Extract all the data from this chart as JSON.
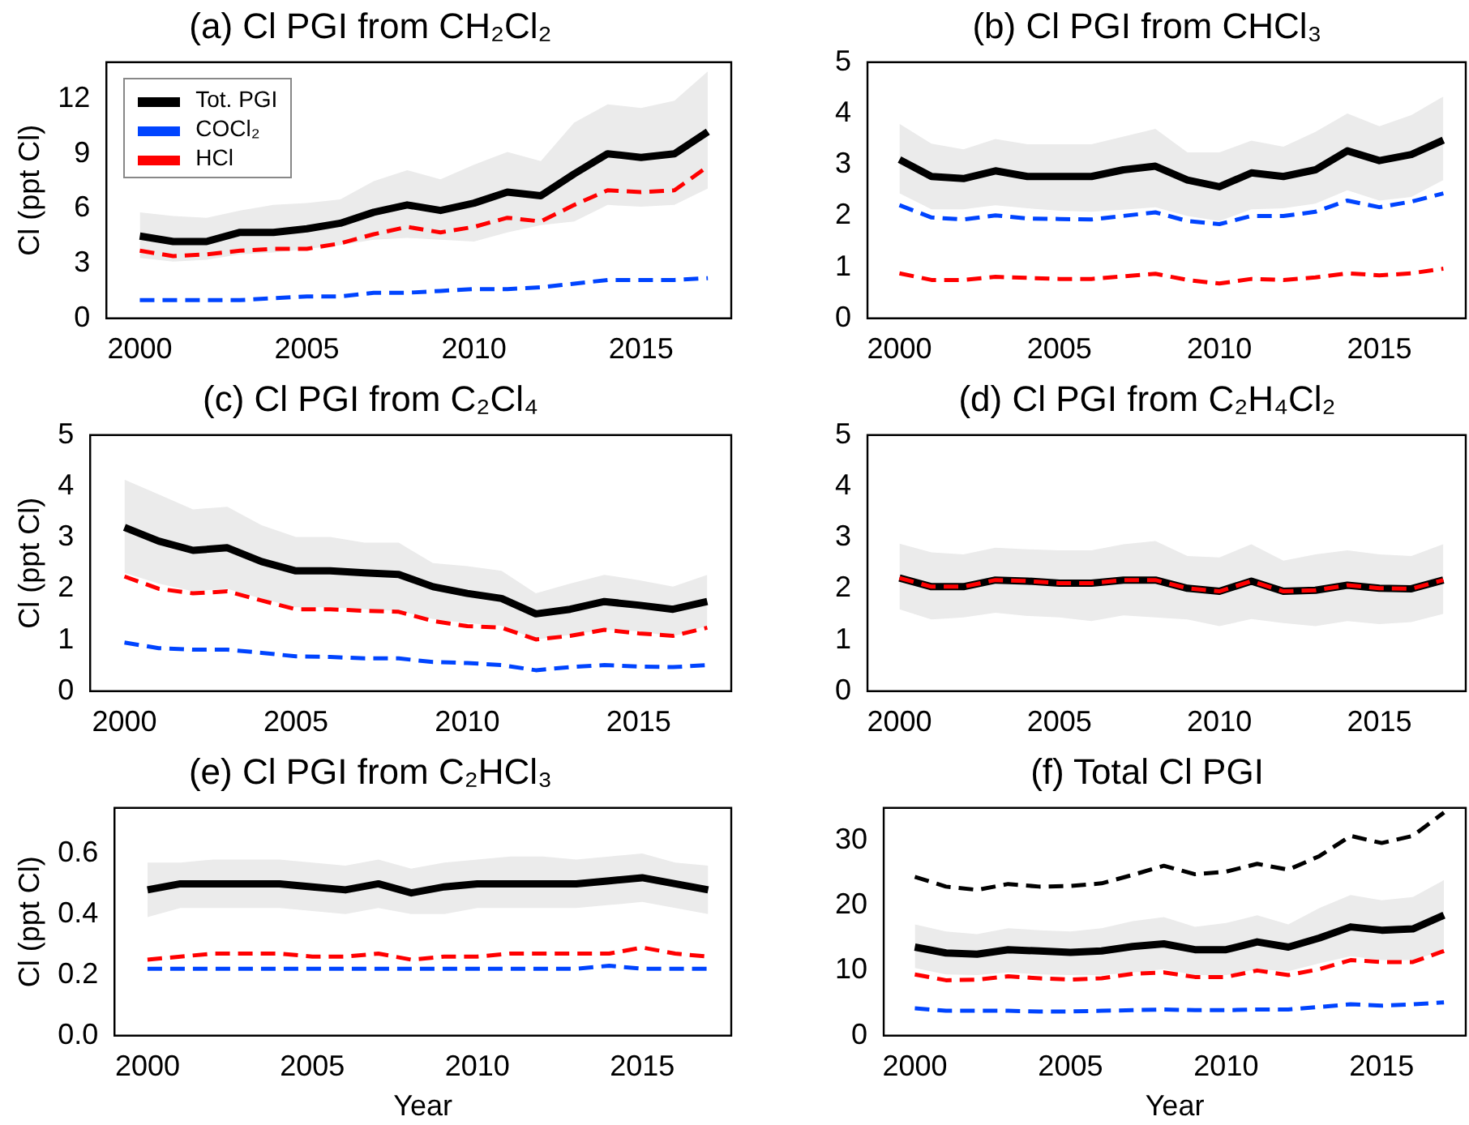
{
  "chart_data": [
    {
      "type": "line",
      "title": "(a) Cl PGI from CH₂Cl₂",
      "ylabel": "Cl (ppt Cl)",
      "legend": "top left",
      "x": [
        2000,
        2001,
        2002,
        2003,
        2004,
        2005,
        2006,
        2007,
        2008,
        2009,
        2010,
        2011,
        2012,
        2013,
        2014,
        2015,
        2016,
        2017
      ],
      "xlim": [
        1999,
        2017.7
      ],
      "xticks": [
        2000,
        2005,
        2010,
        2015
      ],
      "ylim": [
        0,
        14
      ],
      "yticks": [
        0,
        3,
        6,
        9,
        12
      ],
      "series": [
        {
          "name": "Tot. PGI",
          "color": "#000000",
          "line_style": "solid",
          "values": [
            4.5,
            4.2,
            4.2,
            4.7,
            4.7,
            4.9,
            5.2,
            5.8,
            6.2,
            5.9,
            6.3,
            6.9,
            6.7,
            7.9,
            9.0,
            8.8,
            9.0,
            10.2
          ],
          "lower": [
            3.3,
            3.1,
            3.2,
            3.5,
            3.6,
            3.8,
            4.0,
            4.3,
            4.4,
            4.3,
            4.2,
            4.7,
            5.1,
            5.3,
            6.2,
            6.1,
            6.2,
            7.1
          ],
          "upper": [
            5.8,
            5.6,
            5.5,
            5.9,
            6.2,
            6.3,
            6.5,
            7.5,
            8.1,
            7.6,
            8.4,
            9.1,
            8.6,
            10.7,
            11.7,
            11.5,
            11.9,
            13.5
          ]
        },
        {
          "name": "COCl₂",
          "color": "#0044ff",
          "line_style": "dashed",
          "values": [
            1.0,
            1.0,
            1.0,
            1.0,
            1.1,
            1.2,
            1.2,
            1.4,
            1.4,
            1.5,
            1.6,
            1.6,
            1.7,
            1.9,
            2.1,
            2.1,
            2.1,
            2.2
          ]
        },
        {
          "name": "HCl",
          "color": "#ff0000",
          "line_style": "dashed",
          "values": [
            3.7,
            3.4,
            3.5,
            3.7,
            3.8,
            3.8,
            4.1,
            4.6,
            5.0,
            4.7,
            5.0,
            5.5,
            5.3,
            6.2,
            7.0,
            6.9,
            7.0,
            8.3
          ]
        }
      ]
    },
    {
      "type": "line",
      "title": "(b) Cl PGI from CHCl₃",
      "x": [
        2000,
        2001,
        2002,
        2003,
        2004,
        2005,
        2006,
        2007,
        2008,
        2009,
        2010,
        2011,
        2012,
        2013,
        2014,
        2015,
        2016,
        2017
      ],
      "xlim": [
        1999,
        2017.7
      ],
      "xticks": [
        2000,
        2005,
        2010,
        2015
      ],
      "ylim": [
        0,
        5
      ],
      "yticks": [
        0,
        1,
        2,
        3,
        4,
        5
      ],
      "series": [
        {
          "color": "#000000",
          "line_style": "solid",
          "values": [
            3.1,
            2.77,
            2.73,
            2.88,
            2.77,
            2.77,
            2.77,
            2.9,
            2.97,
            2.7,
            2.57,
            2.84,
            2.77,
            2.9,
            3.27,
            3.08,
            3.2,
            3.48
          ],
          "lower": [
            2.44,
            2.13,
            2.13,
            2.21,
            2.15,
            2.1,
            2.08,
            2.12,
            2.17,
            2.0,
            1.9,
            2.13,
            2.15,
            2.24,
            2.5,
            2.3,
            2.37,
            2.7
          ],
          "upper": [
            3.8,
            3.41,
            3.3,
            3.5,
            3.4,
            3.4,
            3.4,
            3.55,
            3.7,
            3.24,
            3.24,
            3.47,
            3.35,
            3.64,
            4.0,
            3.75,
            3.97,
            4.33
          ]
        },
        {
          "color": "#0044ff",
          "line_style": "dashed",
          "values": [
            2.21,
            1.97,
            1.93,
            2.01,
            1.95,
            1.94,
            1.93,
            2.0,
            2.07,
            1.9,
            1.84,
            2.0,
            2.0,
            2.08,
            2.3,
            2.17,
            2.28,
            2.44
          ]
        },
        {
          "color": "#ff0000",
          "line_style": "dashed",
          "values": [
            0.88,
            0.75,
            0.75,
            0.81,
            0.79,
            0.77,
            0.77,
            0.82,
            0.87,
            0.75,
            0.68,
            0.77,
            0.75,
            0.8,
            0.88,
            0.84,
            0.88,
            0.97
          ]
        }
      ]
    },
    {
      "type": "line",
      "title": "(c) Cl PGI from C₂Cl₄",
      "ylabel": "Cl (ppt Cl)",
      "x": [
        2000,
        2001,
        2002,
        2003,
        2004,
        2005,
        2006,
        2007,
        2008,
        2009,
        2010,
        2011,
        2012,
        2013,
        2014,
        2015,
        2016,
        2017
      ],
      "xlim": [
        1999,
        2017.7
      ],
      "xticks": [
        2000,
        2005,
        2010,
        2015
      ],
      "ylim": [
        0,
        5
      ],
      "yticks": [
        0,
        1,
        2,
        3,
        4,
        5
      ],
      "series": [
        {
          "color": "#000000",
          "line_style": "solid",
          "values": [
            3.2,
            2.93,
            2.75,
            2.8,
            2.53,
            2.35,
            2.35,
            2.31,
            2.28,
            2.04,
            1.91,
            1.81,
            1.51,
            1.6,
            1.75,
            1.68,
            1.6,
            1.75
          ],
          "lower": [
            2.31,
            2.1,
            1.95,
            2.0,
            1.81,
            1.64,
            1.64,
            1.6,
            1.57,
            1.41,
            1.33,
            1.28,
            1.01,
            1.1,
            1.2,
            1.17,
            1.07,
            1.28
          ],
          "upper": [
            4.13,
            3.84,
            3.55,
            3.6,
            3.24,
            3.01,
            3.01,
            2.9,
            2.9,
            2.5,
            2.44,
            2.35,
            1.91,
            2.1,
            2.27,
            2.17,
            2.04,
            2.27
          ]
        },
        {
          "color": "#0044ff",
          "line_style": "dashed",
          "values": [
            0.95,
            0.84,
            0.81,
            0.81,
            0.75,
            0.68,
            0.67,
            0.64,
            0.64,
            0.57,
            0.55,
            0.51,
            0.41,
            0.47,
            0.51,
            0.48,
            0.47,
            0.51
          ]
        },
        {
          "color": "#ff0000",
          "line_style": "dashed",
          "values": [
            2.24,
            2.0,
            1.91,
            1.95,
            1.77,
            1.6,
            1.6,
            1.57,
            1.55,
            1.37,
            1.27,
            1.24,
            1.01,
            1.08,
            1.2,
            1.13,
            1.08,
            1.24
          ]
        }
      ]
    },
    {
      "type": "line",
      "title": "(d) Cl PGI from C₂H₄Cl₂",
      "x": [
        2000,
        2001,
        2002,
        2003,
        2004,
        2005,
        2006,
        2007,
        2008,
        2009,
        2010,
        2011,
        2012,
        2013,
        2014,
        2015,
        2016,
        2017
      ],
      "xlim": [
        1999,
        2017.7
      ],
      "xticks": [
        2000,
        2005,
        2010,
        2015
      ],
      "ylim": [
        0,
        5
      ],
      "yticks": [
        0,
        1,
        2,
        3,
        4,
        5
      ],
      "series": [
        {
          "color": "#000000",
          "line_style": "solid",
          "values": [
            2.21,
            2.04,
            2.04,
            2.17,
            2.15,
            2.11,
            2.11,
            2.17,
            2.17,
            2.01,
            1.95,
            2.15,
            1.95,
            1.97,
            2.07,
            2.01,
            2.0,
            2.17
          ],
          "lower": [
            1.6,
            1.4,
            1.44,
            1.53,
            1.47,
            1.44,
            1.37,
            1.48,
            1.44,
            1.4,
            1.27,
            1.41,
            1.33,
            1.27,
            1.37,
            1.31,
            1.35,
            1.51
          ],
          "upper": [
            2.88,
            2.71,
            2.67,
            2.8,
            2.77,
            2.75,
            2.75,
            2.87,
            2.93,
            2.64,
            2.61,
            2.87,
            2.55,
            2.67,
            2.75,
            2.67,
            2.64,
            2.87
          ]
        },
        {
          "color": "#ff0000",
          "line_style": "dashed",
          "values": [
            2.21,
            2.04,
            2.04,
            2.17,
            2.15,
            2.11,
            2.11,
            2.17,
            2.17,
            2.01,
            1.95,
            2.15,
            1.95,
            1.97,
            2.07,
            2.01,
            2.0,
            2.17
          ]
        }
      ]
    },
    {
      "type": "line",
      "title": "(e) Cl PGI from C₂HCl₃",
      "ylabel": "Cl (ppt Cl)",
      "xlabel": "Year",
      "x": [
        2000,
        2001,
        2002,
        2003,
        2004,
        2005,
        2006,
        2007,
        2008,
        2009,
        2010,
        2011,
        2012,
        2013,
        2014,
        2015,
        2016,
        2017
      ],
      "xlim": [
        1999,
        2017.7
      ],
      "xticks": [
        2000,
        2005,
        2010,
        2015
      ],
      "ylim": [
        0,
        0.75
      ],
      "yticks": [
        {
          "value": 0,
          "label": "0.0"
        },
        0.2,
        0.4,
        0.6
      ],
      "series": [
        {
          "color": "#000000",
          "line_style": "solid",
          "values": [
            0.48,
            0.5,
            0.5,
            0.5,
            0.5,
            0.49,
            0.48,
            0.5,
            0.47,
            0.49,
            0.5,
            0.5,
            0.5,
            0.5,
            0.51,
            0.52,
            0.5,
            0.48
          ],
          "lower": [
            0.39,
            0.42,
            0.42,
            0.42,
            0.42,
            0.41,
            0.4,
            0.42,
            0.4,
            0.4,
            0.42,
            0.42,
            0.42,
            0.42,
            0.43,
            0.44,
            0.42,
            0.4
          ],
          "upper": [
            0.57,
            0.57,
            0.58,
            0.58,
            0.58,
            0.57,
            0.56,
            0.58,
            0.55,
            0.57,
            0.58,
            0.59,
            0.59,
            0.58,
            0.59,
            0.6,
            0.57,
            0.56
          ]
        },
        {
          "color": "#0044ff",
          "line_style": "dashed",
          "values": [
            0.22,
            0.22,
            0.22,
            0.22,
            0.22,
            0.22,
            0.22,
            0.22,
            0.22,
            0.22,
            0.22,
            0.22,
            0.22,
            0.22,
            0.23,
            0.22,
            0.22,
            0.22
          ]
        },
        {
          "color": "#ff0000",
          "line_style": "dashed",
          "values": [
            0.25,
            0.26,
            0.27,
            0.27,
            0.27,
            0.26,
            0.26,
            0.27,
            0.25,
            0.26,
            0.26,
            0.27,
            0.27,
            0.27,
            0.27,
            0.29,
            0.27,
            0.26
          ]
        }
      ]
    },
    {
      "type": "line",
      "title": "(f) Total Cl PGI",
      "xlabel": "Year",
      "x": [
        2000,
        2001,
        2002,
        2003,
        2004,
        2005,
        2006,
        2007,
        2008,
        2009,
        2010,
        2011,
        2012,
        2013,
        2014,
        2015,
        2016,
        2017
      ],
      "xlim": [
        1999,
        2017.7
      ],
      "xticks": [
        2000,
        2005,
        2010,
        2015
      ],
      "ylim": [
        0,
        35
      ],
      "yticks": [
        0,
        10,
        20,
        30
      ],
      "series": [
        {
          "color": "#000000",
          "line_style": "dashed",
          "values": [
            24.4,
            22.9,
            22.4,
            23.3,
            22.9,
            23.0,
            23.4,
            24.7,
            26.1,
            24.8,
            25.2,
            26.4,
            25.5,
            27.6,
            30.7,
            29.6,
            30.7,
            34.3
          ]
        },
        {
          "color": "#000000",
          "line_style": "solid",
          "values": [
            13.6,
            12.7,
            12.5,
            13.2,
            13.0,
            12.8,
            13.0,
            13.7,
            14.1,
            13.2,
            13.2,
            14.4,
            13.6,
            15.0,
            16.7,
            16.2,
            16.4,
            18.5
          ],
          "lower": [
            10.4,
            9.4,
            9.3,
            9.7,
            9.4,
            9.3,
            9.3,
            9.7,
            10.2,
            9.3,
            9.3,
            10.2,
            9.9,
            11.1,
            12.2,
            11.6,
            11.6,
            13.1
          ],
          "upper": [
            17.1,
            16.0,
            15.6,
            16.5,
            16.2,
            16.0,
            16.5,
            17.6,
            18.2,
            16.7,
            17.3,
            18.5,
            17.1,
            19.6,
            21.6,
            20.8,
            21.3,
            23.9
          ]
        },
        {
          "color": "#0044ff",
          "line_style": "dashed",
          "values": [
            4.2,
            3.8,
            3.8,
            3.8,
            3.7,
            3.7,
            3.8,
            3.9,
            4.0,
            3.9,
            3.9,
            4.0,
            4.0,
            4.4,
            4.8,
            4.6,
            4.8,
            5.1
          ]
        },
        {
          "color": "#ff0000",
          "line_style": "dashed",
          "values": [
            9.4,
            8.5,
            8.6,
            9.1,
            8.8,
            8.6,
            8.8,
            9.5,
            9.7,
            9.0,
            9.0,
            10.0,
            9.3,
            10.2,
            11.6,
            11.3,
            11.3,
            13.0
          ]
        }
      ]
    }
  ]
}
